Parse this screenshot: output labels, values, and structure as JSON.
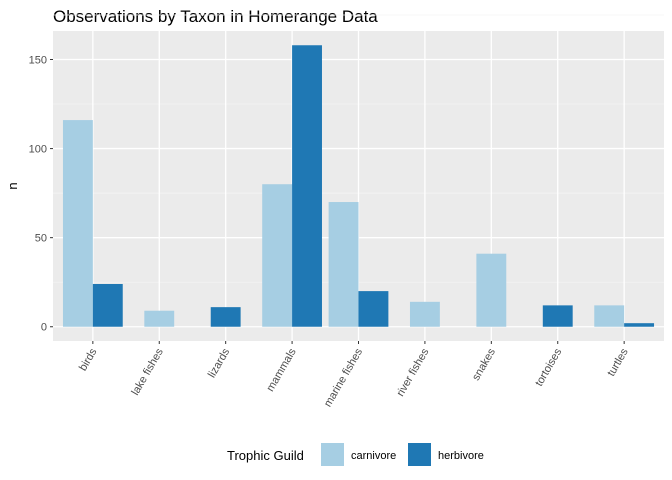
{
  "chart_data": {
    "type": "bar",
    "title": "Observations by Taxon in Homerange Data",
    "xlabel": "",
    "ylabel": "n",
    "categories": [
      "birds",
      "lake fishes",
      "lizards",
      "mammals",
      "marine fishes",
      "river fishes",
      "snakes",
      "tortoises",
      "turtles"
    ],
    "series": [
      {
        "name": "carnivore",
        "color": "#a6cee3",
        "values": [
          116,
          9,
          null,
          80,
          70,
          14,
          41,
          null,
          12
        ]
      },
      {
        "name": "herbivore",
        "color": "#1f78b4",
        "values": [
          24,
          null,
          11,
          158,
          20,
          null,
          null,
          12,
          2
        ]
      }
    ],
    "ylim": [
      -8,
      166
    ],
    "yticks": [
      0,
      50,
      100,
      150
    ],
    "grid": true,
    "legend": {
      "title": "Trophic Guild",
      "position": "bottom"
    },
    "background": "#ebebeb"
  }
}
